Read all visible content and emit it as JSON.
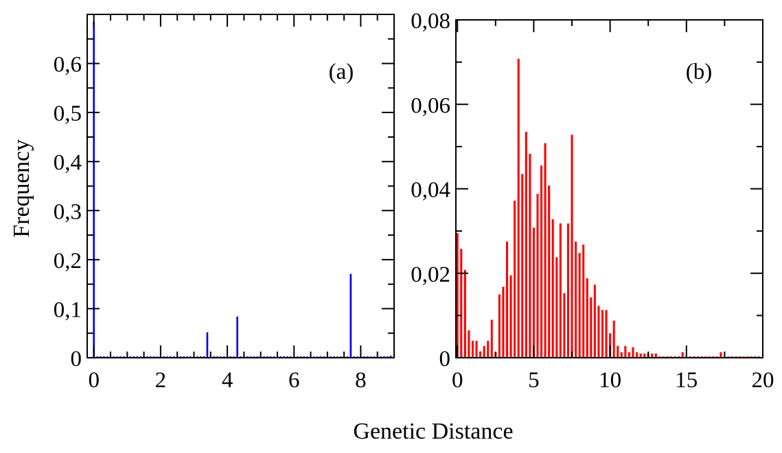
{
  "chart_data": [
    {
      "type": "bar",
      "panel_label": "(a)",
      "ylabel": "Frequency",
      "xlabel": "",
      "xlim": [
        -0.2,
        9
      ],
      "ylim": [
        0,
        0.7
      ],
      "x_ticks": [
        0,
        2,
        4,
        6,
        8
      ],
      "x_tick_labels": [
        "0",
        "2",
        "4",
        "6",
        "8"
      ],
      "y_ticks": [
        0,
        0.1,
        0.2,
        0.3,
        0.4,
        0.5,
        0.6
      ],
      "y_tick_labels": [
        "0",
        "0,1",
        "0,2",
        "0,3",
        "0,4",
        "0,5",
        "0,6"
      ],
      "bin_width": 0.1,
      "color": "#0000ff",
      "grid": false,
      "series": [
        {
          "x": [
            0.0,
            3.4,
            4.3,
            7.7,
            8.9
          ],
          "values": [
            0.685,
            0.052,
            0.084,
            0.171,
            0.004
          ]
        }
      ]
    },
    {
      "type": "bar",
      "panel_label": "(b)",
      "ylabel": "",
      "xlabel": "Genetic Distance",
      "xlim": [
        -0.1,
        20
      ],
      "ylim": [
        0,
        0.08
      ],
      "x_ticks": [
        0,
        5,
        10,
        15,
        20
      ],
      "x_tick_labels": [
        "0",
        "5",
        "10",
        "15",
        "20"
      ],
      "y_ticks": [
        0,
        0.02,
        0.04,
        0.06,
        0.08
      ],
      "y_tick_labels": [
        "0",
        "0,02",
        "0,04",
        "0,06",
        "0,08"
      ],
      "bin_width": 0.25,
      "color": "#ff0000",
      "grid": false,
      "series": [
        {
          "x": [
            0.0,
            0.25,
            0.5,
            0.75,
            1.0,
            1.25,
            1.5,
            1.75,
            2.0,
            2.25,
            2.5,
            2.75,
            3.0,
            3.25,
            3.5,
            3.75,
            4.0,
            4.25,
            4.5,
            4.75,
            5.0,
            5.25,
            5.5,
            5.75,
            6.0,
            6.25,
            6.5,
            6.75,
            7.0,
            7.25,
            7.5,
            7.75,
            8.0,
            8.25,
            8.5,
            8.75,
            9.0,
            9.25,
            9.5,
            9.75,
            10.0,
            10.25,
            10.5,
            10.75,
            11.0,
            11.25,
            11.5,
            11.75,
            12.0,
            12.25,
            12.5,
            12.75,
            13.0,
            14.75,
            17.25
          ],
          "values": [
            0.0295,
            0.0258,
            0.0208,
            0.0065,
            0.004,
            0.004,
            0.0015,
            0.0028,
            0.004,
            0.009,
            0.0013,
            0.015,
            0.0168,
            0.0275,
            0.0195,
            0.0372,
            0.0708,
            0.0435,
            0.0535,
            0.0483,
            0.0308,
            0.0388,
            0.0455,
            0.0508,
            0.0408,
            0.0328,
            0.0238,
            0.0318,
            0.0153,
            0.0318,
            0.0528,
            0.0275,
            0.0248,
            0.0268,
            0.0188,
            0.0143,
            0.0173,
            0.0123,
            0.0113,
            0.0113,
            0.0058,
            0.0088,
            0.0028,
            0.0013,
            0.0028,
            0.0013,
            0.0025,
            0.0013,
            0.001,
            0.001,
            0.001,
            0.001,
            0.001,
            0.0013,
            0.0013
          ]
        }
      ]
    }
  ]
}
